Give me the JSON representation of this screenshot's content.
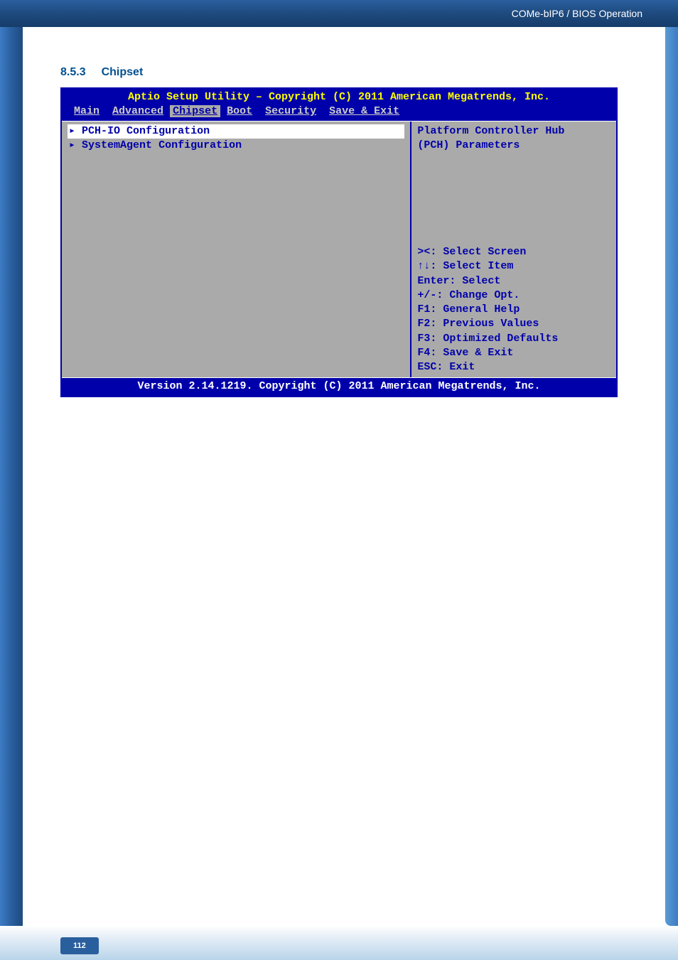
{
  "header": {
    "breadcrumb": "COMe-bIP6 / BIOS Operation"
  },
  "section": {
    "number": "8.5.3",
    "title": "Chipset"
  },
  "bios": {
    "title_line": "Aptio Setup Utility – Copyright (C) 2011 American Megatrends, Inc.",
    "menu": {
      "items": [
        "Main",
        "Advanced",
        "Chipset",
        "Boot",
        "Security",
        "Save & Exit"
      ],
      "selected_index": 2
    },
    "left_panel": {
      "items": [
        {
          "label": "PCH-IO Configuration",
          "highlighted": true
        },
        {
          "label": "SystemAgent Configuration",
          "highlighted": false
        }
      ]
    },
    "right_panel": {
      "help_line1": "Platform Controller Hub",
      "help_line2": "(PCH) Parameters",
      "keys": {
        "k1": "><: Select Screen",
        "k2": "↑↓: Select Item",
        "k3": "Enter: Select",
        "k4": "+/-: Change Opt.",
        "k5": "F1: General Help",
        "k6": "F2: Previous Values",
        "k7": "F3: Optimized Defaults",
        "k8": "F4: Save & Exit",
        "k9": "ESC: Exit"
      }
    },
    "footer": "Version 2.14.1219. Copyright (C) 2011 American Megatrends, Inc."
  },
  "page": {
    "number": "112"
  },
  "styling": {
    "bios_bg": "#0000aa",
    "bios_body_bg": "#aaaaaa",
    "bios_title_color": "#ffff00",
    "bios_text_color": "#0000aa",
    "bios_highlight_bg": "#ffffff",
    "bios_menu_text": "#cccccc",
    "bios_menu_selected_bg": "#aaaaaa",
    "bios_footer_text": "#ffffff",
    "header_gradient_start": "#2a5f9e",
    "header_gradient_end": "#163d6b",
    "section_title_color": "#005090",
    "font_mono": "Courier New",
    "bios_font_size": 15
  }
}
